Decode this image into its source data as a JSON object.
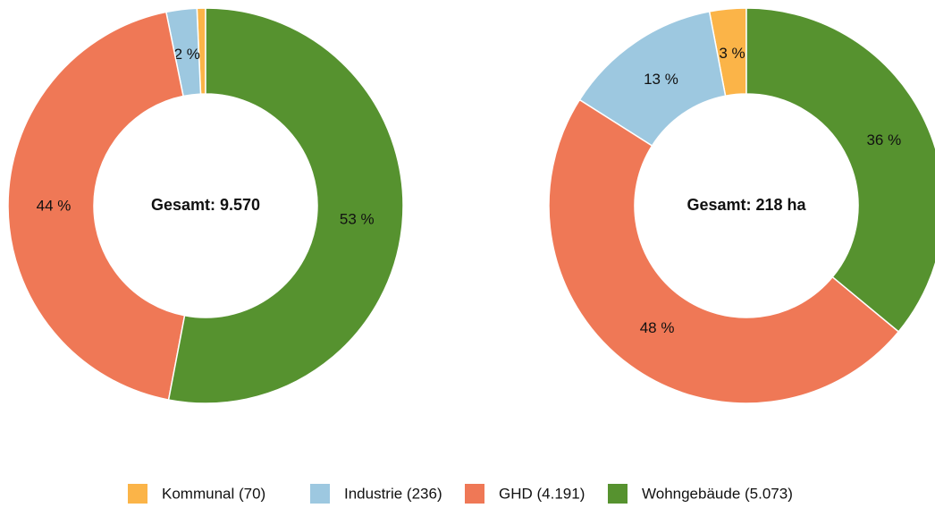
{
  "chart_data": [
    {
      "type": "pie",
      "center_label": "Gesamt: 9.570",
      "values": [
        0.7,
        2.5,
        43.8,
        53.0
      ],
      "value_labels": [
        null,
        "2 %",
        "44 %",
        "53 %"
      ],
      "colors": [
        "#fbb448",
        "#9dc8e0",
        "#ef7856",
        "#56922f"
      ]
    },
    {
      "type": "pie",
      "center_label": "Gesamt: 218 ha",
      "values": [
        3,
        13,
        48,
        36
      ],
      "value_labels": [
        "3 %",
        "13 %",
        "48 %",
        "36 %"
      ],
      "colors": [
        "#fbb448",
        "#9dc8e0",
        "#ef7856",
        "#56922f"
      ]
    }
  ],
  "legend": [
    "Kommunal (70)",
    "Industrie (236)",
    "GHD (4.191)",
    "Wohngebäude (5.073)"
  ]
}
